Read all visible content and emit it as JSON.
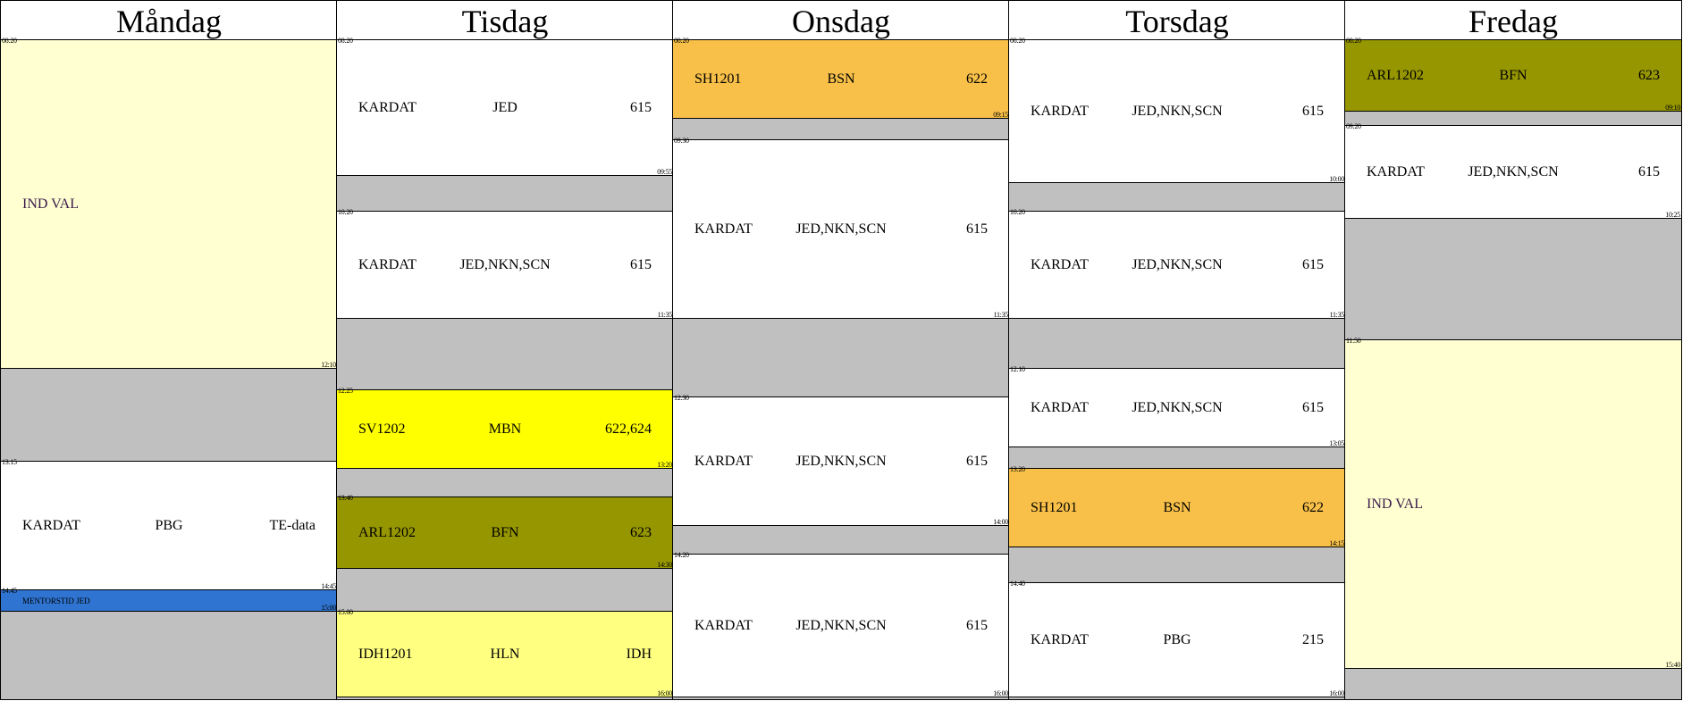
{
  "days": [
    {
      "name": "Måndag",
      "lessons": [
        {
          "start": "08:20",
          "end": "12:10",
          "fields": [
            "IND VAL"
          ],
          "color": "#ffffd1"
        },
        {
          "start": "13:15",
          "end": "14:45",
          "fields": [
            "KARDAT",
            "PBG",
            "TE-data"
          ],
          "color": "#ffffff"
        },
        {
          "start": "14:45",
          "end": "15:00",
          "fields": [
            "MENTORSTID JED"
          ],
          "color": "#2f74d0"
        }
      ]
    },
    {
      "name": "Tisdag",
      "lessons": [
        {
          "start": "08:20",
          "end": "09:55",
          "fields": [
            "KARDAT",
            "JED",
            "615"
          ],
          "color": "#ffffff"
        },
        {
          "start": "10:20",
          "end": "11:35",
          "fields": [
            "KARDAT",
            "JED,NKN,SCN",
            "615"
          ],
          "color": "#ffffff"
        },
        {
          "start": "12:25",
          "end": "13:20",
          "fields": [
            "SV1202",
            "MBN",
            "622,624"
          ],
          "color": "#ffff00"
        },
        {
          "start": "13:40",
          "end": "14:30",
          "fields": [
            "ARL1202",
            "BFN",
            "623"
          ],
          "color": "#969600"
        },
        {
          "start": "15:00",
          "end": "16:00",
          "fields": [
            "IDH1201",
            "HLN",
            "IDH"
          ],
          "color": "#ffff80"
        }
      ]
    },
    {
      "name": "Onsdag",
      "lessons": [
        {
          "start": "08:20",
          "end": "09:15",
          "fields": [
            "SH1201",
            "BSN",
            "622"
          ],
          "color": "#f8c048"
        },
        {
          "start": "09:30",
          "end": "11:35",
          "fields": [
            "KARDAT",
            "JED,NKN,SCN",
            "615"
          ],
          "color": "#ffffff"
        },
        {
          "start": "12:30",
          "end": "14:00",
          "fields": [
            "KARDAT",
            "JED,NKN,SCN",
            "615"
          ],
          "color": "#ffffff"
        },
        {
          "start": "14:20",
          "end": "16:00",
          "fields": [
            "KARDAT",
            "JED,NKN,SCN",
            "615"
          ],
          "color": "#ffffff"
        }
      ]
    },
    {
      "name": "Torsdag",
      "lessons": [
        {
          "start": "08:20",
          "end": "10:00",
          "fields": [
            "KARDAT",
            "JED,NKN,SCN",
            "615"
          ],
          "color": "#ffffff"
        },
        {
          "start": "10:20",
          "end": "11:35",
          "fields": [
            "KARDAT",
            "JED,NKN,SCN",
            "615"
          ],
          "color": "#ffffff"
        },
        {
          "start": "12:10",
          "end": "13:05",
          "fields": [
            "KARDAT",
            "JED,NKN,SCN",
            "615"
          ],
          "color": "#ffffff"
        },
        {
          "start": "13:20",
          "end": "14:15",
          "fields": [
            "SH1201",
            "BSN",
            "622"
          ],
          "color": "#f8c048"
        },
        {
          "start": "14:40",
          "end": "16:00",
          "fields": [
            "KARDAT",
            "PBG",
            "215"
          ],
          "color": "#ffffff"
        }
      ]
    },
    {
      "name": "Fredag",
      "lessons": [
        {
          "start": "08:20",
          "end": "09:10",
          "fields": [
            "ARL1202",
            "BFN",
            "623"
          ],
          "color": "#969600"
        },
        {
          "start": "09:20",
          "end": "10:25",
          "fields": [
            "KARDAT",
            "JED,NKN,SCN",
            "615"
          ],
          "color": "#ffffff"
        },
        {
          "start": "11:50",
          "end": "15:40",
          "fields": [
            "IND VAL"
          ],
          "color": "#ffffd1"
        }
      ]
    }
  ]
}
